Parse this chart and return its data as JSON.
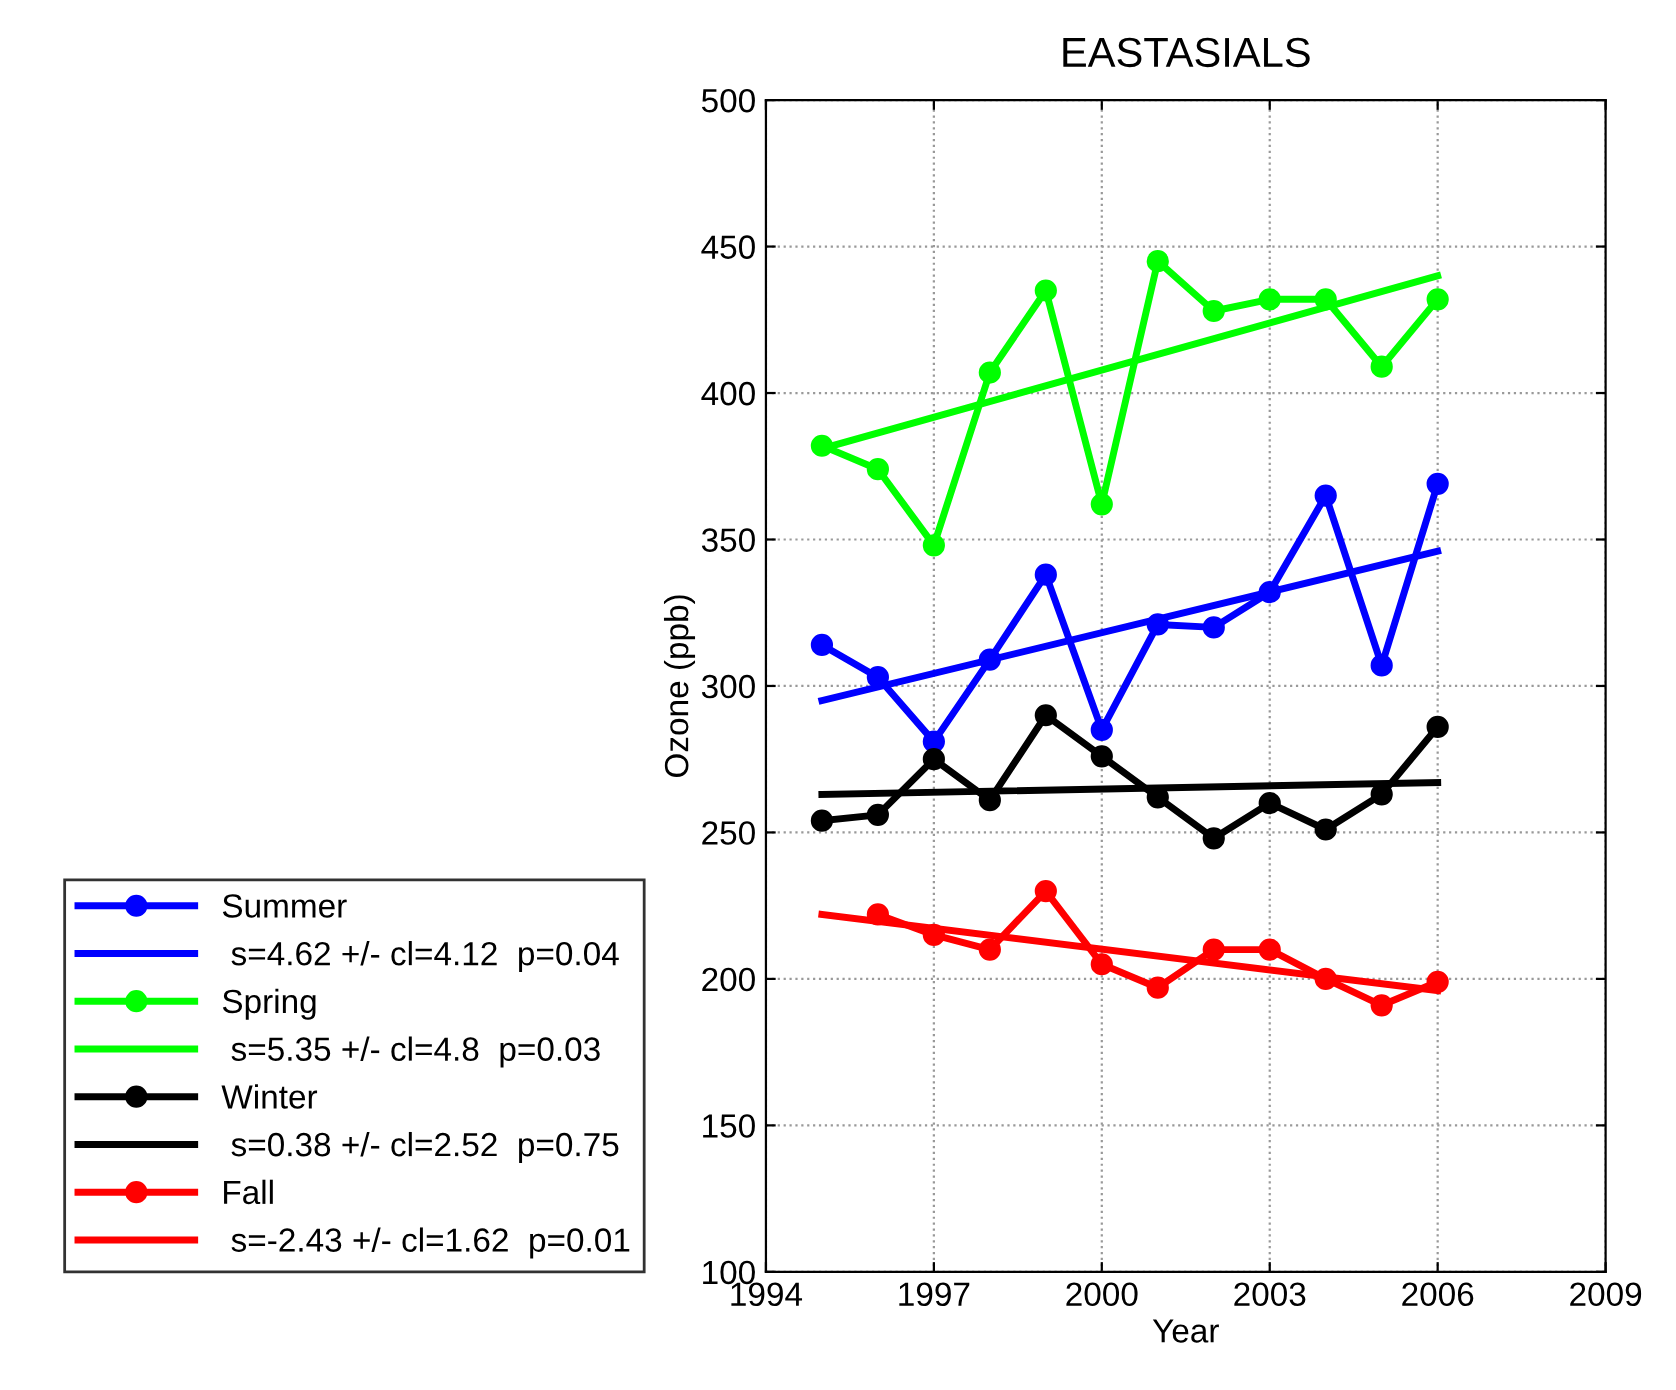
{
  "chart_data": {
    "type": "line",
    "title": "EASTASIALS",
    "xlabel": "Year",
    "ylabel": "Ozone (ppb)",
    "xlim": [
      1994,
      2009
    ],
    "xticks": [
      1994,
      1997,
      2000,
      2003,
      2006,
      2009
    ],
    "ylim": [
      100,
      500
    ],
    "yticks": [
      100,
      150,
      200,
      250,
      300,
      350,
      400,
      450,
      500
    ],
    "grid": true,
    "legend": "left",
    "marker": "circle",
    "line_style": "solid",
    "series": [
      {
        "name": "Summer",
        "color": "#0000ff",
        "x": [
          1995,
          1996,
          1997,
          1998,
          1999,
          2000,
          2001,
          2002,
          2003,
          2004,
          2005,
          2006
        ],
        "values": [
          314,
          303,
          281,
          309,
          338,
          285,
          321,
          320,
          332,
          365,
          307,
          369
        ]
      },
      {
        "name": " s=4.62 +/- cl=4.12  p=0.04",
        "color": "#0000ff",
        "marker": "none",
        "x": [
          1995,
          2006
        ],
        "values": [
          295,
          346
        ]
      },
      {
        "name": "Spring",
        "color": "#00ff00",
        "x": [
          1995,
          1996,
          1997,
          1998,
          1999,
          2000,
          2001,
          2002,
          2003,
          2004,
          2005,
          2006
        ],
        "values": [
          382,
          374,
          348,
          407,
          435,
          362,
          445,
          428,
          432,
          432,
          409,
          432
        ]
      },
      {
        "name": " s=5.35 +/- cl=4.8  p=0.03",
        "color": "#00ff00",
        "marker": "none",
        "x": [
          1995,
          2006
        ],
        "values": [
          381,
          440
        ]
      },
      {
        "name": "Winter",
        "color": "#000000",
        "x": [
          1995,
          1996,
          1997,
          1998,
          1999,
          2000,
          2001,
          2002,
          2003,
          2004,
          2005,
          2006
        ],
        "values": [
          254,
          256,
          275,
          261,
          290,
          276,
          262,
          248,
          260,
          251,
          263,
          286
        ]
      },
      {
        "name": " s=0.38 +/- cl=2.52  p=0.75",
        "color": "#000000",
        "marker": "none",
        "x": [
          1995,
          2006
        ],
        "values": [
          263,
          267
        ]
      },
      {
        "name": "Fall",
        "color": "#ff0000",
        "x": [
          1996,
          1997,
          1998,
          1999,
          2000,
          2001,
          2002,
          2003,
          2004,
          2005,
          2006
        ],
        "values": [
          222,
          215,
          210,
          230,
          205,
          197,
          210,
          210,
          200,
          191,
          199
        ]
      },
      {
        "name": " s=-2.43 +/- cl=1.62  p=0.01",
        "color": "#ff0000",
        "marker": "none",
        "x": [
          1995,
          2006
        ],
        "values": [
          222,
          196
        ]
      }
    ]
  }
}
